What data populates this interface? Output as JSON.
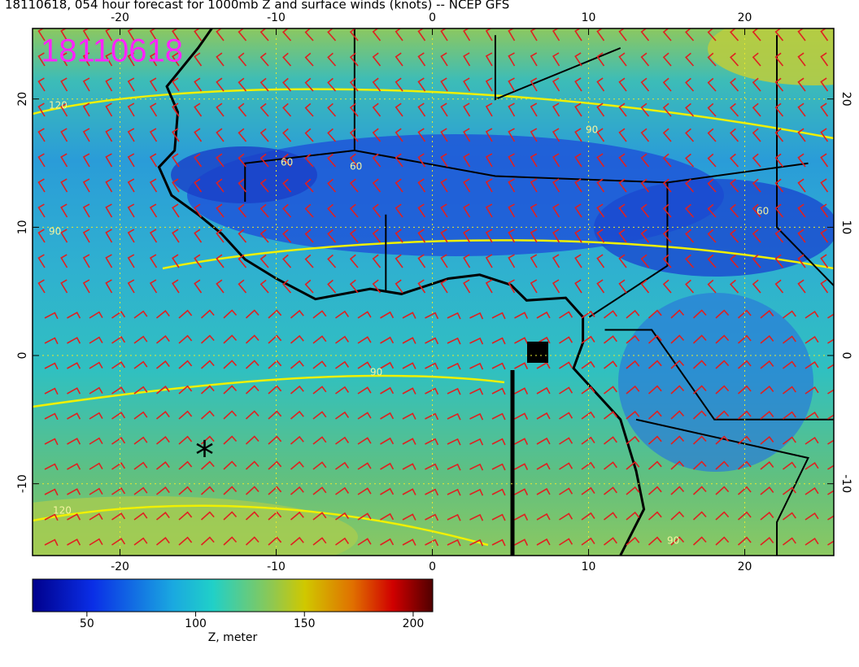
{
  "map": {
    "type": "map",
    "title": "18110618, 054 hour forecast for 1000mb Z and surface winds (knots) -- NCEP GFS",
    "stamp": "18110618",
    "xlim": [
      -25.6,
      25.7
    ],
    "ylim": [
      -15.6,
      25.5
    ],
    "xticks": [
      -20,
      -10,
      0,
      10,
      20
    ],
    "yticks": [
      -10,
      0,
      10,
      20
    ],
    "grid": true,
    "contour_levels": [
      60,
      90,
      120
    ],
    "colorbar": {
      "label": "Z, meter",
      "lim": [
        25,
        209
      ],
      "ticks": [
        50,
        100,
        150,
        200
      ]
    }
  }
}
